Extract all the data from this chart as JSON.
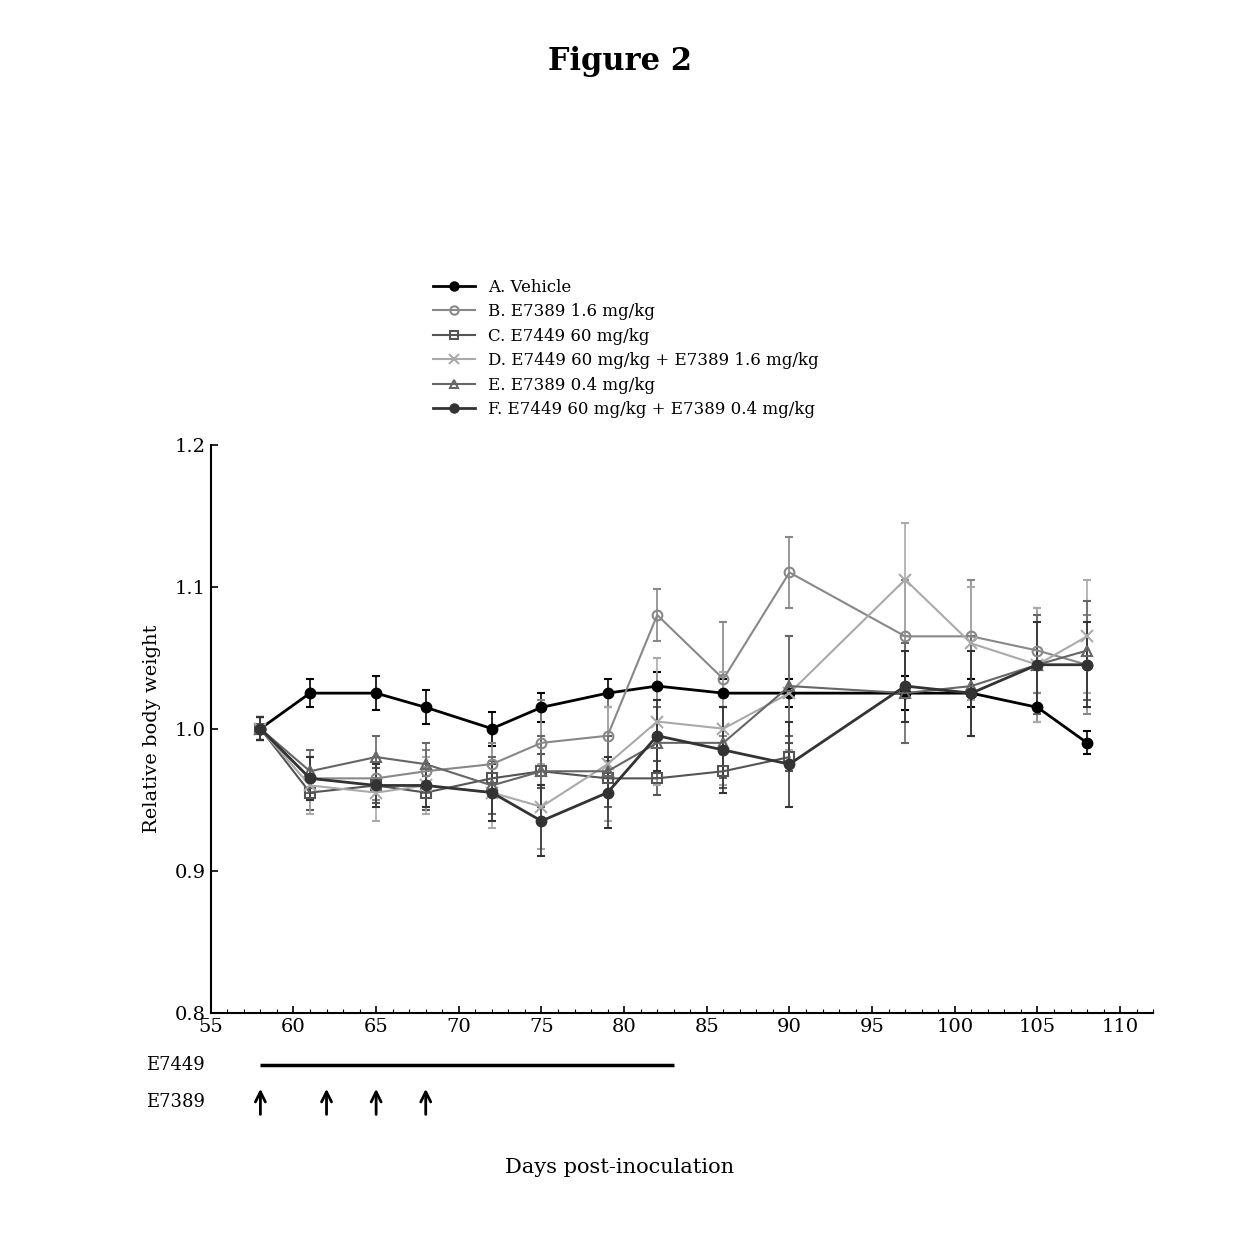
{
  "title": "Figure 2",
  "ylabel": "Relative body weight",
  "xlabel": "Days post-inoculation",
  "ylim": [
    0.8,
    1.2
  ],
  "xlim": [
    55,
    112
  ],
  "xticks": [
    55,
    60,
    65,
    70,
    75,
    80,
    85,
    90,
    95,
    100,
    105,
    110
  ],
  "yticks": [
    0.8,
    0.9,
    1.0,
    1.1,
    1.2
  ],
  "series": [
    {
      "label": "A. Vehicle",
      "color": "#000000",
      "marker": "o",
      "markersize": 7,
      "linewidth": 2.0,
      "linestyle": "-",
      "fillstyle": "full",
      "x": [
        58,
        61,
        65,
        68,
        72,
        75,
        79,
        82,
        86,
        90,
        97,
        101,
        105,
        108
      ],
      "y": [
        1.0,
        1.025,
        1.025,
        1.015,
        1.0,
        1.015,
        1.025,
        1.03,
        1.025,
        1.025,
        1.025,
        1.025,
        1.015,
        0.99
      ],
      "yerr": [
        0.008,
        0.01,
        0.012,
        0.012,
        0.012,
        0.01,
        0.01,
        0.01,
        0.01,
        0.01,
        0.012,
        0.01,
        0.01,
        0.008
      ]
    },
    {
      "label": "B. E7389 1.6 mg/kg",
      "color": "#888888",
      "marker": "o",
      "markersize": 7,
      "linewidth": 1.5,
      "linestyle": "-",
      "fillstyle": "none",
      "x": [
        58,
        61,
        65,
        68,
        72,
        75,
        79,
        82,
        86,
        90,
        97,
        101,
        105,
        108
      ],
      "y": [
        1.0,
        0.965,
        0.965,
        0.97,
        0.975,
        0.99,
        0.995,
        1.08,
        1.035,
        1.11,
        1.065,
        1.065,
        1.055,
        1.045
      ],
      "yerr": [
        0.008,
        0.015,
        0.015,
        0.015,
        0.015,
        0.03,
        0.03,
        0.018,
        0.04,
        0.025,
        0.04,
        0.04,
        0.03,
        0.035
      ]
    },
    {
      "label": "C. E7449 60 mg/kg",
      "color": "#555555",
      "marker": "s",
      "markersize": 7,
      "linewidth": 1.5,
      "linestyle": "-",
      "fillstyle": "none",
      "x": [
        58,
        61,
        65,
        68,
        72,
        75,
        79,
        82,
        86,
        90
      ],
      "y": [
        1.0,
        0.955,
        0.96,
        0.955,
        0.965,
        0.97,
        0.965,
        0.965,
        0.97,
        0.98
      ],
      "yerr": [
        0.008,
        0.012,
        0.012,
        0.012,
        0.012,
        0.012,
        0.012,
        0.012,
        0.012,
        0.01
      ]
    },
    {
      "label": "D. E7449 60 mg/kg + E7389 1.6 mg/kg",
      "color": "#aaaaaa",
      "marker": "x",
      "markersize": 8,
      "linewidth": 1.5,
      "linestyle": "-",
      "fillstyle": "full",
      "x": [
        58,
        61,
        65,
        68,
        72,
        75,
        79,
        82,
        86,
        90,
        97,
        101,
        105,
        108
      ],
      "y": [
        1.0,
        0.96,
        0.955,
        0.96,
        0.955,
        0.945,
        0.975,
        1.005,
        1.0,
        1.025,
        1.105,
        1.06,
        1.045,
        1.065
      ],
      "yerr": [
        0.008,
        0.02,
        0.02,
        0.02,
        0.025,
        0.03,
        0.04,
        0.045,
        0.04,
        0.04,
        0.04,
        0.04,
        0.04,
        0.04
      ]
    },
    {
      "label": "E. E7389 0.4 mg/kg",
      "color": "#666666",
      "marker": "^",
      "markersize": 7,
      "linewidth": 1.5,
      "linestyle": "-",
      "fillstyle": "none",
      "x": [
        58,
        61,
        65,
        68,
        72,
        75,
        79,
        82,
        86,
        90,
        97,
        101,
        105,
        108
      ],
      "y": [
        1.0,
        0.97,
        0.98,
        0.975,
        0.96,
        0.97,
        0.97,
        0.99,
        0.99,
        1.03,
        1.025,
        1.03,
        1.045,
        1.055
      ],
      "yerr": [
        0.008,
        0.015,
        0.015,
        0.015,
        0.02,
        0.025,
        0.025,
        0.025,
        0.025,
        0.035,
        0.035,
        0.035,
        0.035,
        0.035
      ]
    },
    {
      "label": "F. E7449 60 mg/kg + E7389 0.4 mg/kg",
      "color": "#333333",
      "marker": "o",
      "markersize": 7,
      "linewidth": 2.0,
      "linestyle": "-",
      "fillstyle": "full",
      "x": [
        58,
        61,
        65,
        68,
        72,
        75,
        79,
        82,
        86,
        90,
        97,
        101,
        105,
        108
      ],
      "y": [
        1.0,
        0.965,
        0.96,
        0.96,
        0.955,
        0.935,
        0.955,
        0.995,
        0.985,
        0.975,
        1.03,
        1.025,
        1.045,
        1.045
      ],
      "yerr": [
        0.008,
        0.015,
        0.015,
        0.015,
        0.02,
        0.025,
        0.025,
        0.025,
        0.03,
        0.03,
        0.025,
        0.03,
        0.03,
        0.03
      ]
    }
  ],
  "e7449_line_start": 58,
  "e7449_line_end": 83,
  "e7389_arrows": [
    58,
    62,
    65,
    68
  ],
  "background_color": "#ffffff"
}
